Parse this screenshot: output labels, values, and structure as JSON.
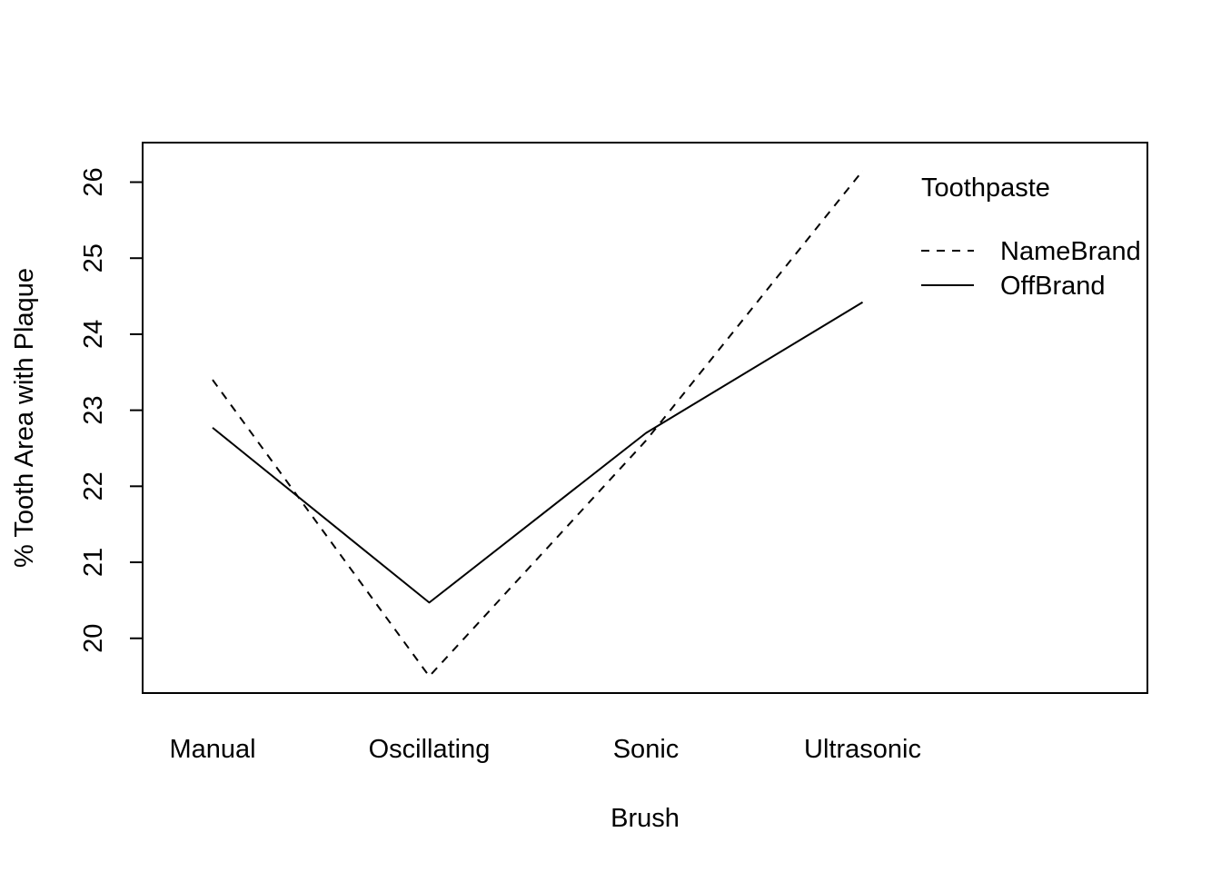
{
  "chart_data": {
    "type": "line",
    "title": "",
    "xlabel": "Brush",
    "ylabel": "% Tooth Area with Plaque",
    "categories": [
      "Manual",
      "Oscillating",
      "Sonic",
      "Ultrasonic"
    ],
    "series": [
      {
        "name": "NameBrand",
        "values": [
          23.4,
          19.5,
          22.6,
          26.15
        ],
        "line_style": "dashed",
        "color": "#000000"
      },
      {
        "name": "OffBrand",
        "values": [
          22.77,
          20.47,
          22.7,
          24.42
        ],
        "line_style": "solid",
        "color": "#000000"
      }
    ],
    "ylim": [
      19.28,
      26.52
    ],
    "y_ticks": [
      20,
      21,
      22,
      23,
      24,
      25,
      26
    ],
    "legend": {
      "title": "Toothpaste",
      "position": "top-right"
    },
    "grid": false
  }
}
